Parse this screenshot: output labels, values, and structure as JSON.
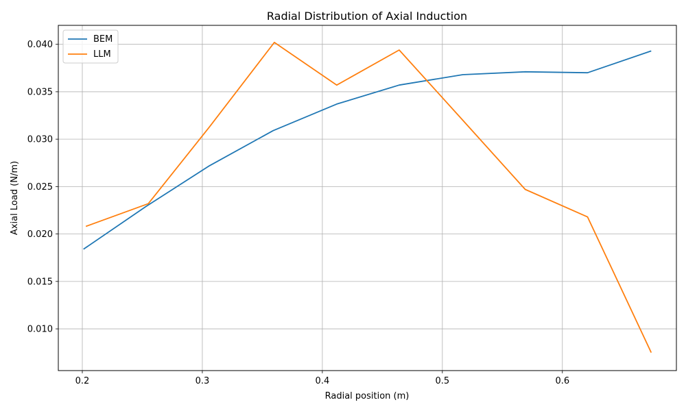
{
  "chart_data": {
    "type": "line",
    "title": "Radial Distribution of Axial Induction",
    "xlabel": "Radial position (m)",
    "ylabel": "Axial Load (N/m)",
    "xlim": [
      0.18,
      0.695
    ],
    "ylim": [
      0.0056,
      0.042
    ],
    "xticks": [
      0.2,
      0.3,
      0.4,
      0.5,
      0.6
    ],
    "xtick_labels": [
      "0.2",
      "0.3",
      "0.4",
      "0.5",
      "0.6"
    ],
    "yticks": [
      0.01,
      0.015,
      0.02,
      0.025,
      0.03,
      0.035,
      0.04
    ],
    "ytick_labels": [
      "0.010",
      "0.015",
      "0.020",
      "0.025",
      "0.030",
      "0.035",
      "0.040"
    ],
    "grid": true,
    "legend_position": "top-left",
    "series": [
      {
        "name": "BEM",
        "color": "#1f77b4",
        "x": [
          0.201,
          0.253,
          0.306,
          0.359,
          0.412,
          0.464,
          0.517,
          0.569,
          0.621,
          0.674
        ],
        "y": [
          0.0184,
          0.0229,
          0.0272,
          0.0309,
          0.0337,
          0.0357,
          0.0368,
          0.0371,
          0.037,
          0.0393
        ]
      },
      {
        "name": "LLM",
        "color": "#ff7f0e",
        "x": [
          0.203,
          0.255,
          0.306,
          0.36,
          0.412,
          0.464,
          0.517,
          0.569,
          0.621,
          0.674
        ],
        "y": [
          0.0208,
          0.0232,
          0.0313,
          0.0402,
          0.0357,
          0.0394,
          0.032,
          0.0247,
          0.0218,
          0.0075
        ]
      }
    ]
  }
}
